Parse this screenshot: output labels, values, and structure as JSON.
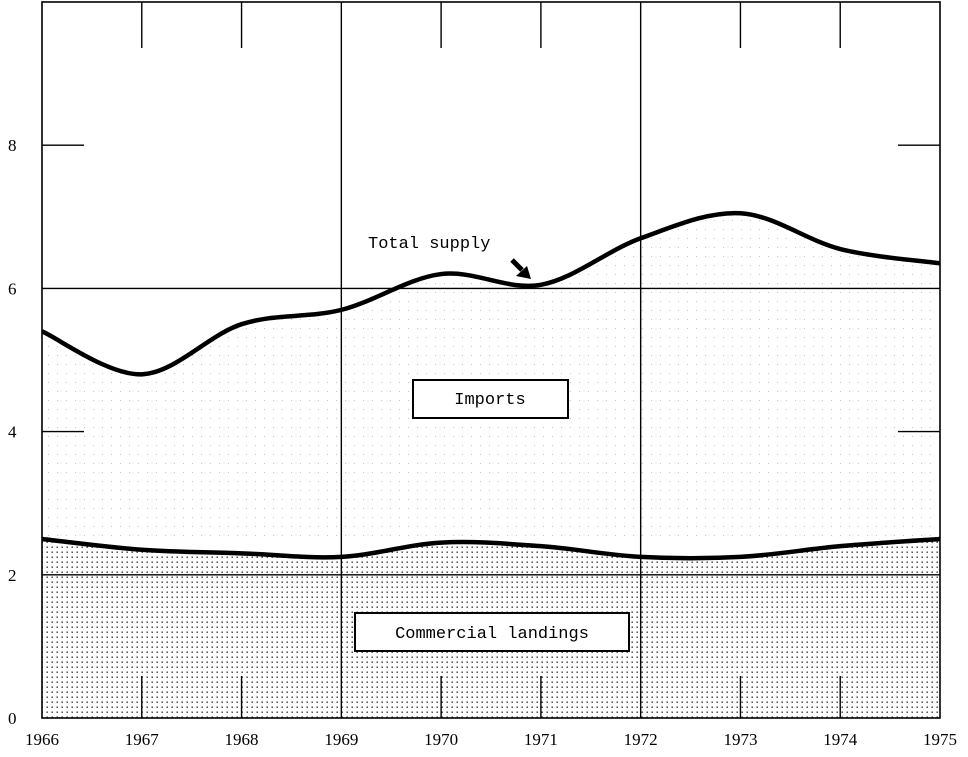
{
  "chart_data": {
    "type": "area",
    "x": [
      1966,
      1967,
      1968,
      1969,
      1970,
      1971,
      1972,
      1973,
      1974,
      1975
    ],
    "series": [
      {
        "name": "Commercial landings",
        "values": [
          2.5,
          2.35,
          2.3,
          2.25,
          2.45,
          2.4,
          2.25,
          2.25,
          2.4,
          2.5
        ]
      },
      {
        "name": "Total supply",
        "values": [
          5.4,
          4.8,
          5.5,
          5.7,
          6.2,
          6.05,
          6.7,
          7.05,
          6.55,
          6.35
        ]
      }
    ],
    "area_labels": {
      "imports": "Imports",
      "landings": "Commercial landings"
    },
    "annotation": "Total supply",
    "x_ticks": [
      "1966",
      "1967",
      "1968",
      "1969",
      "1970",
      "1971",
      "1972",
      "1973",
      "1974",
      "1975"
    ],
    "y_ticks": [
      "0",
      "2",
      "4",
      "6",
      "8"
    ],
    "xlim": [
      1966,
      1975
    ],
    "ylim": [
      0,
      10
    ],
    "grid": true
  }
}
